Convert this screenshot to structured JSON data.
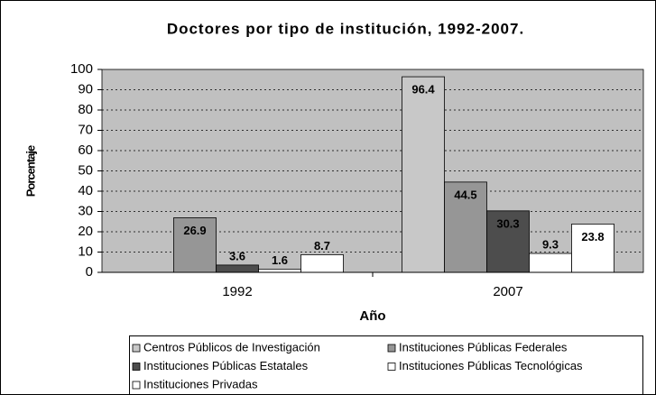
{
  "chart_data": {
    "type": "bar",
    "title": "Doctores por tipo de institución, 1992-2007.",
    "x_label": "Año",
    "y_label": "Porcentaje",
    "categories": [
      "1992",
      "2007"
    ],
    "series": [
      {
        "name": "Centros Públicos de Investigación",
        "color": "#c8c8c8",
        "values": [
          null,
          96.4
        ]
      },
      {
        "name": "Instituciones Públicas Federales",
        "color": "#969696",
        "values": [
          26.9,
          44.5
        ]
      },
      {
        "name": "Instituciones Públicas Estatales",
        "color": "#4d4d4d",
        "values": [
          3.6,
          30.3
        ]
      },
      {
        "name": "Instituciones Públicas Tecnológicas",
        "color": "#ffffff",
        "values": [
          1.6,
          9.3
        ]
      },
      {
        "name": "Instituciones Privadas",
        "color": "#ffffff",
        "values": [
          8.7,
          23.8
        ]
      }
    ],
    "ylim": [
      0,
      100
    ],
    "yticks": [
      0,
      10,
      20,
      30,
      40,
      50,
      60,
      70,
      80,
      90,
      100
    ],
    "grid": true,
    "legend": "bottom",
    "plot_background": "#c0c0c0"
  }
}
